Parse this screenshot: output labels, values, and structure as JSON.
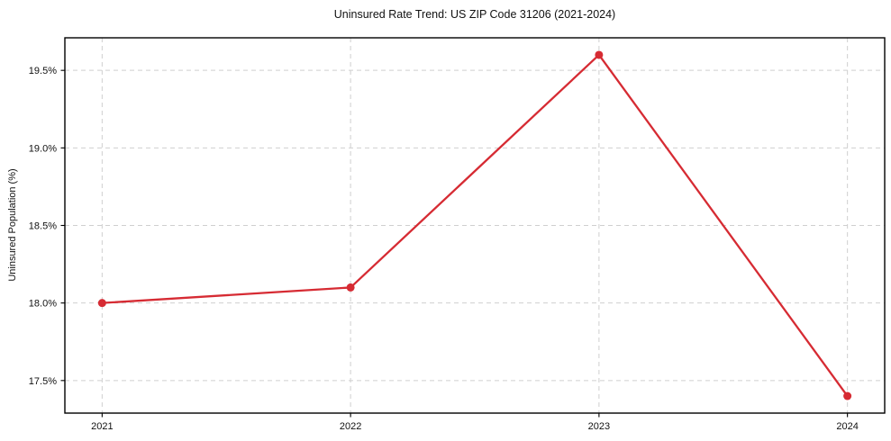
{
  "chart_data": {
    "type": "line",
    "title": "Uninsured Rate Trend: US ZIP Code 31206 (2021-2024)",
    "xlabel": "",
    "ylabel": "Uninsured Population (%)",
    "x": [
      2021,
      2022,
      2023,
      2024
    ],
    "values": [
      18.0,
      18.1,
      19.6,
      17.4
    ],
    "xticks": {
      "values": [
        2021,
        2022,
        2023,
        2024
      ],
      "labels": [
        "2021",
        "2022",
        "2023",
        "2024"
      ]
    },
    "yticks": {
      "values": [
        17.5,
        18.0,
        18.5,
        19.0,
        19.5
      ],
      "labels": [
        "17.5%",
        "18.0%",
        "18.5%",
        "19.0%",
        "19.5%"
      ]
    },
    "xlim": [
      2020.85,
      2024.15
    ],
    "ylim": [
      17.29,
      19.71
    ],
    "grid": true,
    "legend": false,
    "style": {
      "line_color": "#d62b33",
      "marker": "circle",
      "marker_radius": 4.5,
      "line_width": 2.3,
      "grid_color": "#cfcfcf",
      "grid_dash": "5 4",
      "spine_color": "#000000",
      "tick_color": "#000000",
      "text_color": "#111111",
      "background": "#ffffff"
    }
  }
}
